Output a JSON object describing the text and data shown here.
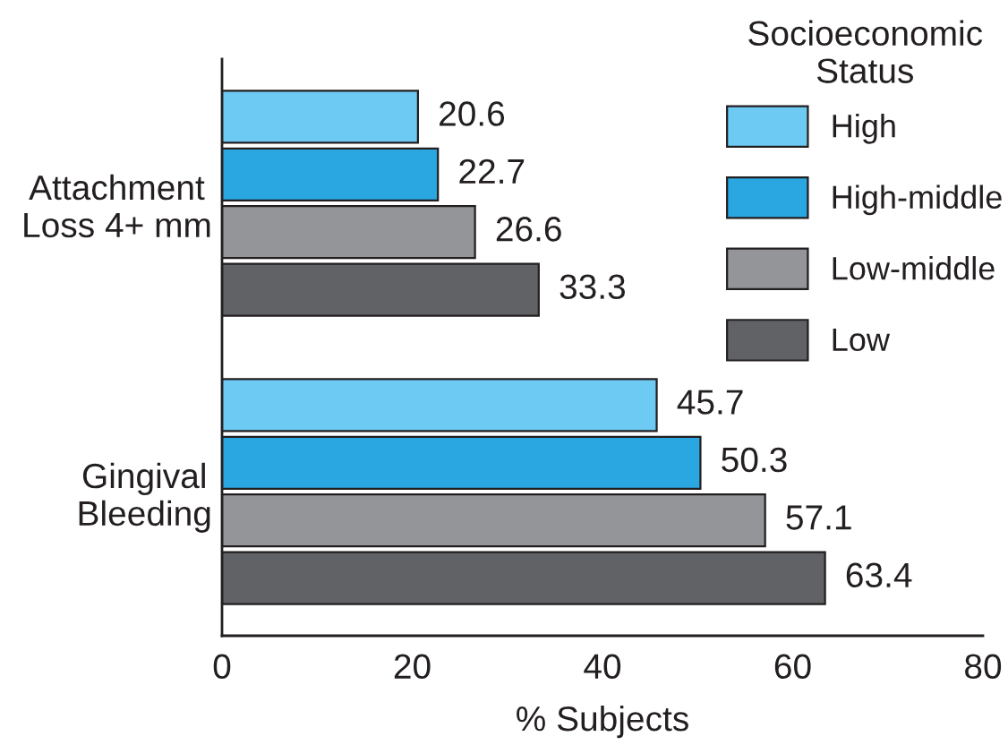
{
  "chart_data": {
    "type": "bar",
    "orientation": "horizontal",
    "categories": [
      "Attachment\nLoss 4+ mm",
      "Gingival\nBleeding"
    ],
    "series": [
      {
        "name": "High",
        "color": "#6dcbf3",
        "values": [
          20.6,
          45.7
        ]
      },
      {
        "name": "High-middle",
        "color": "#2aa7e1",
        "values": [
          22.7,
          50.3
        ]
      },
      {
        "name": "Low-middle",
        "color": "#939598",
        "values": [
          26.6,
          57.1
        ]
      },
      {
        "name": "Low",
        "color": "#616265",
        "values": [
          33.3,
          63.4
        ]
      }
    ],
    "xlabel": "% Subjects",
    "legend_title": "Socioeconomic\nStatus",
    "legend": "top right",
    "xlim": [
      0,
      80
    ],
    "xticks": [
      0,
      20,
      40,
      60,
      80
    ],
    "data_labels": true
  }
}
